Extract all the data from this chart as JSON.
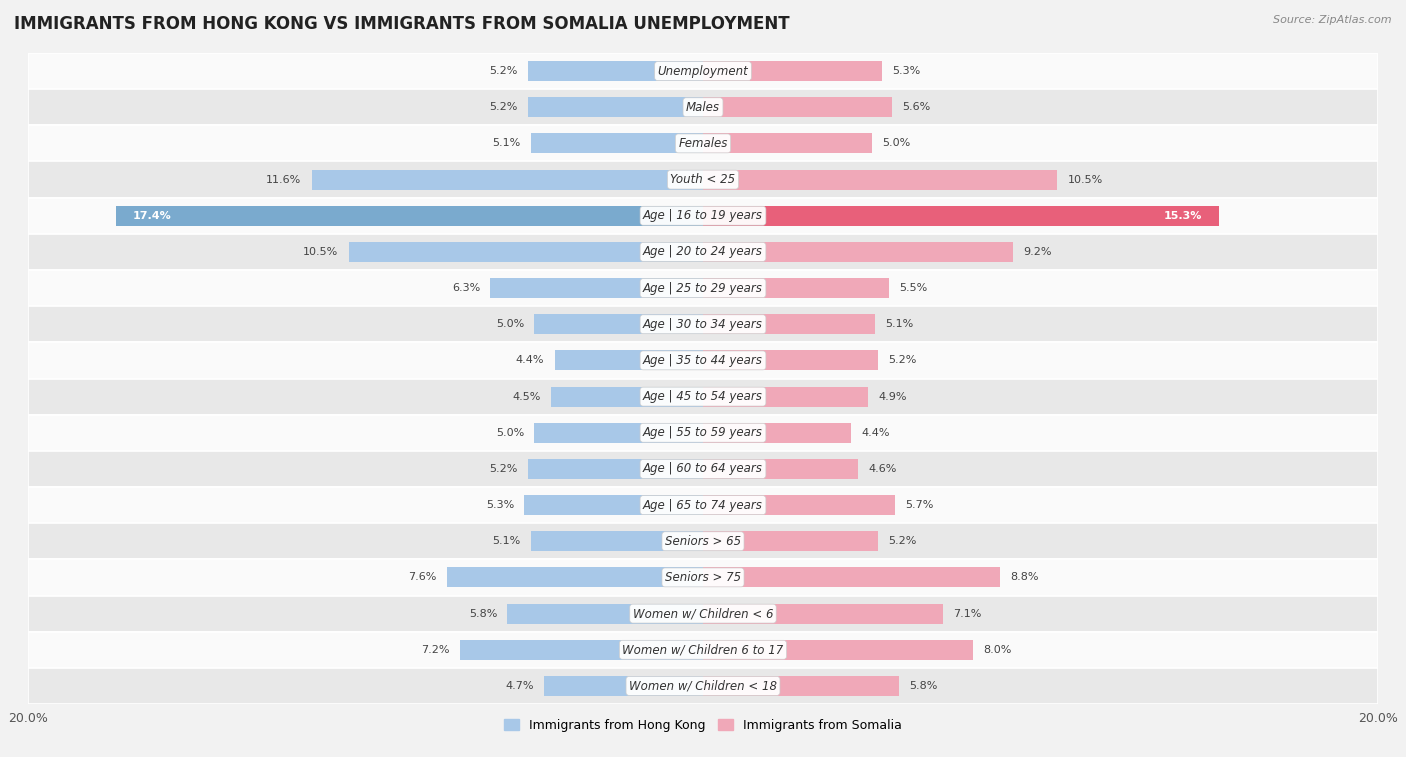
{
  "title": "IMMIGRANTS FROM HONG KONG VS IMMIGRANTS FROM SOMALIA UNEMPLOYMENT",
  "source": "Source: ZipAtlas.com",
  "categories": [
    "Unemployment",
    "Males",
    "Females",
    "Youth < 25",
    "Age | 16 to 19 years",
    "Age | 20 to 24 years",
    "Age | 25 to 29 years",
    "Age | 30 to 34 years",
    "Age | 35 to 44 years",
    "Age | 45 to 54 years",
    "Age | 55 to 59 years",
    "Age | 60 to 64 years",
    "Age | 65 to 74 years",
    "Seniors > 65",
    "Seniors > 75",
    "Women w/ Children < 6",
    "Women w/ Children 6 to 17",
    "Women w/ Children < 18"
  ],
  "hong_kong": [
    5.2,
    5.2,
    5.1,
    11.6,
    17.4,
    10.5,
    6.3,
    5.0,
    4.4,
    4.5,
    5.0,
    5.2,
    5.3,
    5.1,
    7.6,
    5.8,
    7.2,
    4.7
  ],
  "somalia": [
    5.3,
    5.6,
    5.0,
    10.5,
    15.3,
    9.2,
    5.5,
    5.1,
    5.2,
    4.9,
    4.4,
    4.6,
    5.7,
    5.2,
    8.8,
    7.1,
    8.0,
    5.8
  ],
  "hk_color": "#a8c8e8",
  "somalia_color": "#f0a8b8",
  "hk_highlight": "#7aaace",
  "som_highlight": "#e8607a",
  "bg_color": "#f2f2f2",
  "row_bg_even": "#fafafa",
  "row_bg_odd": "#e8e8e8",
  "max_val": 20.0,
  "bar_height": 0.55,
  "title_fontsize": 12,
  "label_fontsize": 8.5,
  "value_fontsize": 8.0,
  "highlight_row": 4
}
